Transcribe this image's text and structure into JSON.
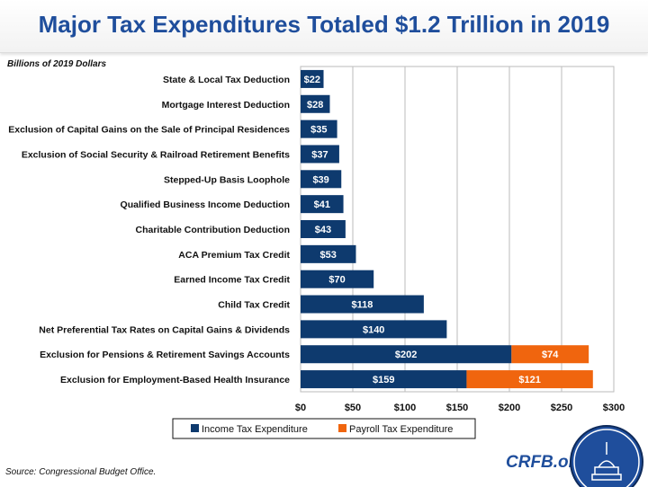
{
  "title": "Major Tax Expenditures Totaled $1.2 Trillion in 2019",
  "source": "Source: Congressional Budget Office.",
  "brand": "CRFB.org",
  "chart_data": {
    "type": "bar",
    "orientation": "horizontal",
    "stacked": true,
    "title": "Major Tax Expenditures Totaled $1.2 Trillion in 2019",
    "units_label": "Billions of 2019 Dollars",
    "categories": [
      "State & Local Tax Deduction",
      "Mortgage Interest Deduction",
      "Exclusion of Capital Gains on the Sale of Principal Residences",
      "Exclusion of Social Security & Railroad Retirement Benefits",
      "Stepped-Up Basis Loophole",
      "Qualified Business Income Deduction",
      "Charitable Contribution Deduction",
      "ACA Premium Tax Credit",
      "Earned Income Tax Credit",
      "Child Tax Credit",
      "Net Preferential Tax Rates on Capital Gains & Dividends",
      "Exclusion for Pensions & Retirement Savings Accounts",
      "Exclusion for Employment-Based Health Insurance"
    ],
    "series": [
      {
        "name": "Income Tax Expenditure",
        "color": "#0e3a6e",
        "values": [
          22,
          28,
          35,
          37,
          39,
          41,
          43,
          53,
          70,
          118,
          140,
          202,
          159
        ],
        "labels": [
          "$22",
          "$28",
          "$35",
          "$37",
          "$39",
          "$41",
          "$43",
          "$53",
          "$70",
          "$118",
          "$140",
          "$202",
          "$159"
        ]
      },
      {
        "name": "Payroll Tax Expenditure",
        "color": "#f0650e",
        "values": [
          0,
          0,
          0,
          0,
          0,
          0,
          0,
          0,
          0,
          0,
          0,
          74,
          121
        ],
        "labels": [
          "",
          "",
          "",
          "",
          "",
          "",
          "",
          "",
          "",
          "",
          "",
          "$74",
          "$121"
        ]
      }
    ],
    "xlim": [
      0,
      300
    ],
    "xticks": [
      0,
      50,
      100,
      150,
      200,
      250,
      300
    ],
    "xtick_labels": [
      "$0",
      "$50",
      "$100",
      "$150",
      "$200",
      "$250",
      "$300"
    ],
    "grid": true,
    "legend_position": "bottom"
  }
}
